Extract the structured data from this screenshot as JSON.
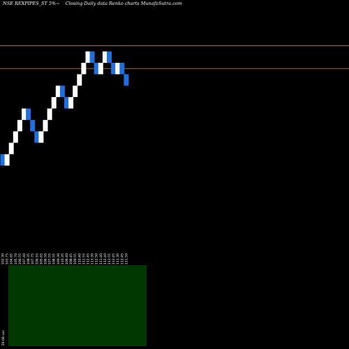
{
  "header": {
    "symbol": "NSE REXPIPES_ST 5%~",
    "chart_label": "Closing Daily data Renko charts MunafaSutra.com"
  },
  "colors": {
    "background": "#000000",
    "up_brick": "#ffffff",
    "down_brick": "#1e6fe0",
    "level_line": "#c87a2a",
    "volume_area": "#013801",
    "tick_text": "#ffffff"
  },
  "chart_data": {
    "type": "renko",
    "title": "",
    "xlabel": "",
    "ylabel": "",
    "bricks": [
      {
        "close": 103.0,
        "dir": "down"
      },
      {
        "close": 104.0,
        "dir": "up"
      },
      {
        "close": 105.0,
        "dir": "up"
      },
      {
        "close": 106.0,
        "dir": "up"
      },
      {
        "close": 107.0,
        "dir": "up"
      },
      {
        "close": 108.0,
        "dir": "up"
      },
      {
        "close": 107.0,
        "dir": "down"
      },
      {
        "close": 106.0,
        "dir": "down"
      },
      {
        "close": 105.0,
        "dir": "down"
      },
      {
        "close": 106.0,
        "dir": "up"
      },
      {
        "close": 107.0,
        "dir": "up"
      },
      {
        "close": 108.0,
        "dir": "up"
      },
      {
        "close": 109.0,
        "dir": "up"
      },
      {
        "close": 110.0,
        "dir": "up"
      },
      {
        "close": 109.0,
        "dir": "down"
      },
      {
        "close": 108.0,
        "dir": "down"
      },
      {
        "close": 109.0,
        "dir": "up"
      },
      {
        "close": 110.0,
        "dir": "up"
      },
      {
        "close": 111.0,
        "dir": "up"
      },
      {
        "close": 112.0,
        "dir": "up"
      },
      {
        "close": 113.0,
        "dir": "up"
      },
      {
        "close": 112.0,
        "dir": "down"
      },
      {
        "close": 111.0,
        "dir": "down"
      },
      {
        "close": 112.0,
        "dir": "up"
      },
      {
        "close": 113.0,
        "dir": "up"
      },
      {
        "close": 112.0,
        "dir": "down"
      },
      {
        "close": 111.0,
        "dir": "down"
      },
      {
        "close": 112.0,
        "dir": "up"
      },
      {
        "close": 111.0,
        "dir": "down"
      },
      {
        "close": 110.0,
        "dir": "down"
      }
    ],
    "y_range": [
      95.5,
      117.5
    ],
    "level_lines": [
      113.5,
      111.5
    ],
    "x_tick_labels": [
      "102.30",
      "103.75",
      "104.65",
      "105.70",
      "106.55",
      "107.40",
      "108.35",
      "107.75",
      "106.55",
      "105.65",
      "106.50",
      "107.55",
      "108.55",
      "109.30",
      "110.35",
      "109.40",
      "108.45",
      "109.55",
      "110.40",
      "111.55",
      "112.45",
      "113.30",
      "112.50",
      "111.40",
      "112.40",
      "113.55",
      "112.45",
      "111.30",
      "112.45",
      "111.50"
    ],
    "volume": {
      "values": [
        0,
        0,
        0,
        0,
        0,
        0,
        0,
        0,
        0,
        0,
        0,
        0,
        0,
        0,
        0,
        0,
        0,
        0,
        0,
        0,
        0,
        0,
        0,
        0,
        0,
        0,
        0,
        0,
        0,
        0
      ],
      "y_tick_label": "29.08 Lac"
    },
    "grid": false,
    "legend": "none"
  }
}
